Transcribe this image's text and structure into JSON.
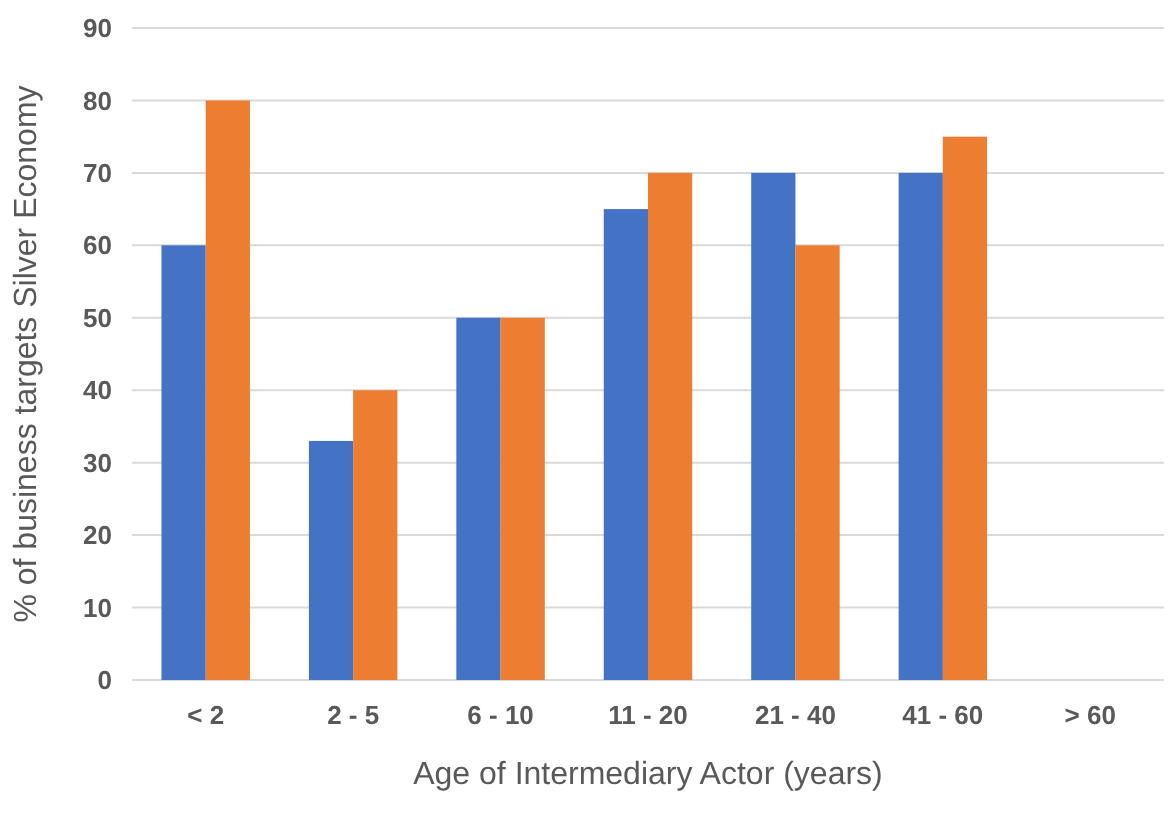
{
  "chart_data": {
    "type": "bar",
    "xlabel": "Age of Intermediary Actor (years)",
    "ylabel": "% of business targets Silver Economy",
    "categories": [
      "< 2",
      "2 - 5",
      "6 - 10",
      "11 - 20",
      "21 - 40",
      "41 - 60",
      "> 60"
    ],
    "series": [
      {
        "color": "#4472c4",
        "values": [
          60,
          33,
          50,
          65,
          70,
          70,
          null
        ]
      },
      {
        "color": "#ed7d31",
        "values": [
          80,
          40,
          50,
          70,
          60,
          75,
          null
        ]
      }
    ],
    "ylim": [
      0,
      90
    ],
    "yticks": [
      0,
      10,
      20,
      30,
      40,
      50,
      60,
      70,
      80,
      90
    ],
    "grid": "y"
  }
}
